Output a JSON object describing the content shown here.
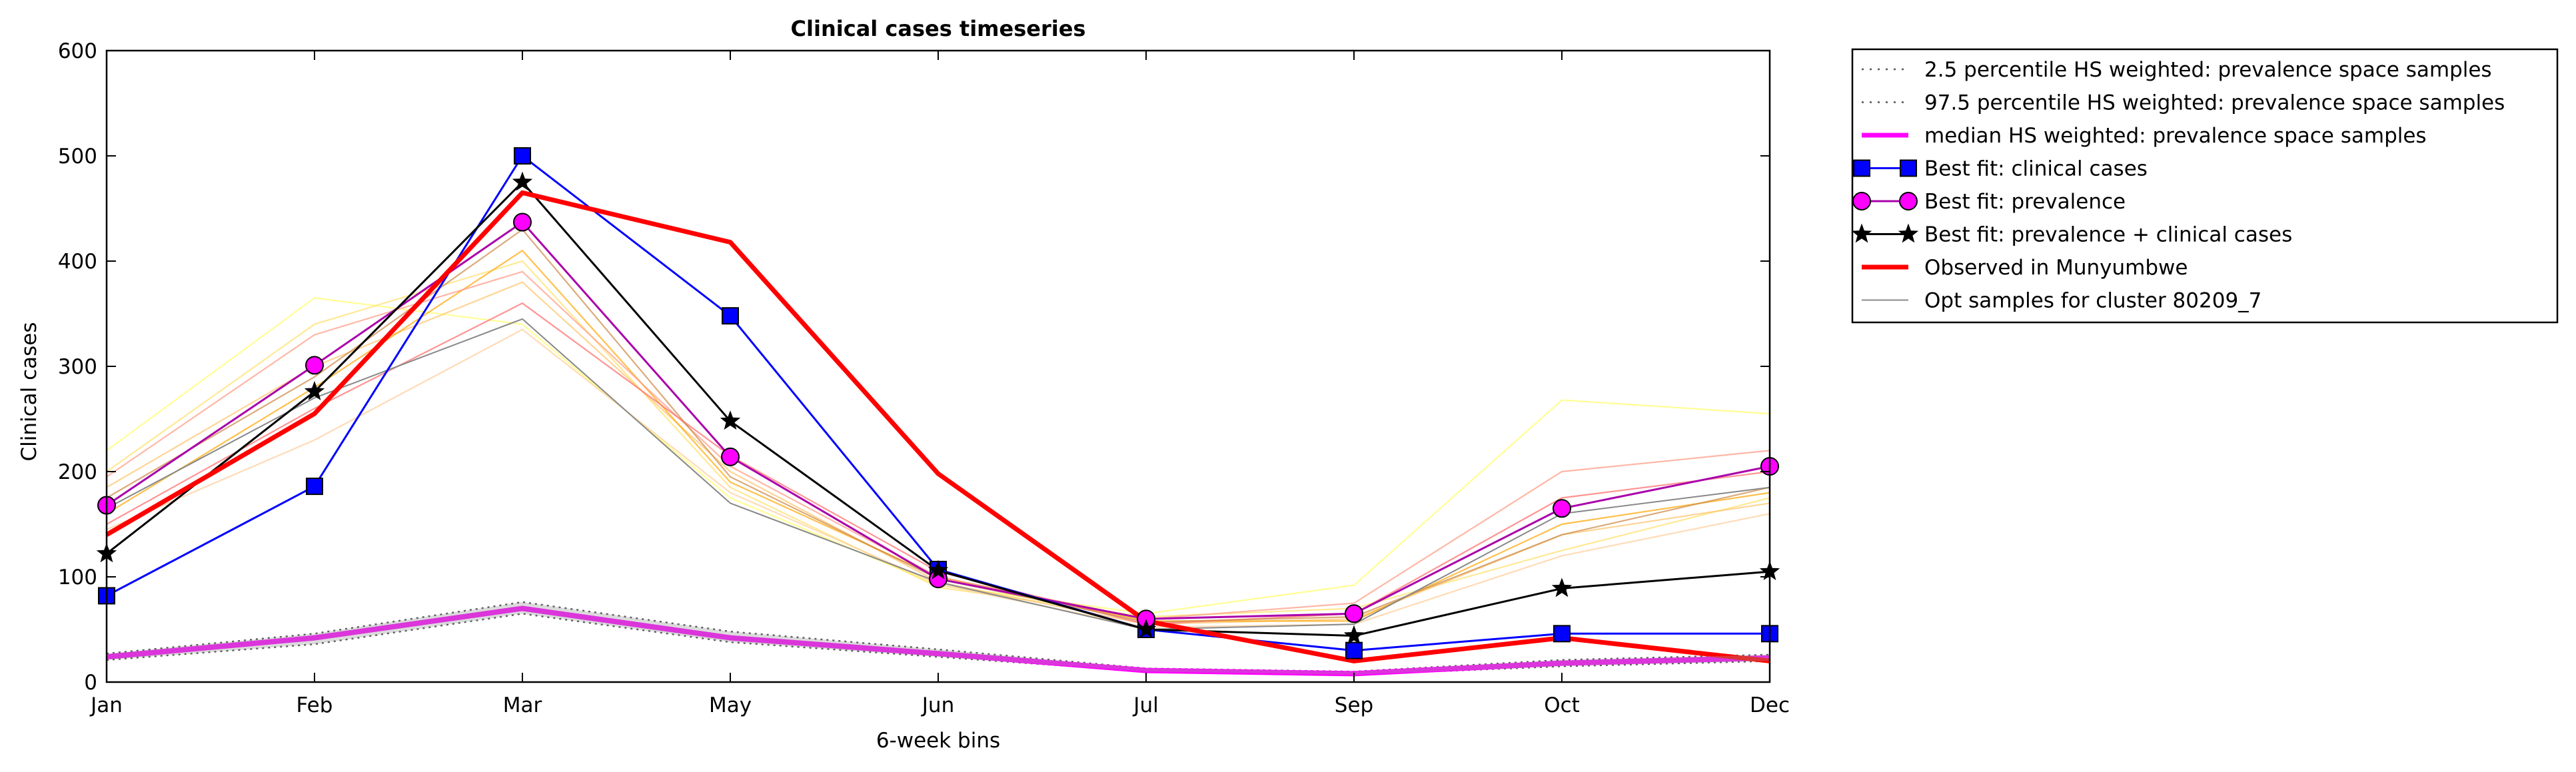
{
  "chart_data": {
    "type": "line",
    "title": "Clinical cases timeseries",
    "xlabel": "6-week bins",
    "ylabel": "Clinical cases",
    "categories": [
      "Jan",
      "Feb",
      "Mar",
      "May",
      "Jun",
      "Jul",
      "Sep",
      "Oct",
      "Dec"
    ],
    "ylim": [
      0,
      600
    ],
    "yticks": [
      0,
      100,
      200,
      300,
      400,
      500,
      600
    ],
    "grid": false,
    "legend_position": "outside-right",
    "series": [
      {
        "name": "2.5 percentile HS weighted: prevalence space samples",
        "style": "dotted",
        "color": "#555555",
        "values": [
          21,
          36,
          65,
          38,
          24,
          10,
          7,
          15,
          20
        ]
      },
      {
        "name": "97.5 percentile HS weighted: prevalence space samples",
        "style": "dotted",
        "color": "#555555",
        "values": [
          27,
          46,
          76,
          48,
          31,
          13,
          10,
          21,
          26
        ]
      },
      {
        "name": "median HS weighted: prevalence space samples",
        "style": "solid",
        "color": "#ff00ff",
        "values": [
          24,
          42,
          70,
          42,
          27,
          11,
          8,
          18,
          23
        ]
      },
      {
        "name": "Best fit: clinical cases",
        "style": "solid",
        "color": "#0000ff",
        "marker": "square",
        "values": [
          82,
          186,
          500,
          348,
          107,
          50,
          30,
          46,
          46
        ]
      },
      {
        "name": "Best fit: prevalence",
        "style": "solid",
        "color": "#aa00aa",
        "marker": "circle",
        "marker_color": "#ff00ff",
        "values": [
          168,
          301,
          437,
          214,
          98,
          60,
          65,
          165,
          205
        ]
      },
      {
        "name": "Best fit: prevalence + clinical cases",
        "style": "solid",
        "color": "#000000",
        "marker": "star",
        "values": [
          122,
          276,
          475,
          248,
          106,
          50,
          44,
          89,
          105
        ]
      },
      {
        "name": "Observed in Munyumbwe",
        "style": "solid",
        "color": "#ff0000",
        "values": [
          140,
          255,
          465,
          418,
          198,
          58,
          20,
          42,
          20
        ]
      },
      {
        "name": "Opt samples for cluster 80209_7",
        "style": "solid",
        "color": "#888888",
        "values": [
          165,
          270,
          345,
          170,
          95,
          50,
          55,
          160,
          185
        ]
      }
    ],
    "samples": [
      {
        "color": "#ffff66",
        "values": [
          220,
          365,
          340,
          175,
          92,
          65,
          92,
          268,
          255
        ]
      },
      {
        "color": "#ffe066",
        "values": [
          200,
          340,
          400,
          185,
          90,
          62,
          70,
          125,
          175
        ]
      },
      {
        "color": "#ffc266",
        "values": [
          185,
          300,
          380,
          200,
          95,
          55,
          60,
          140,
          170
        ]
      },
      {
        "color": "#ffa500",
        "values": [
          160,
          280,
          410,
          190,
          100,
          58,
          58,
          150,
          180
        ]
      },
      {
        "color": "#ff9980",
        "values": [
          195,
          330,
          390,
          205,
          100,
          60,
          75,
          200,
          220
        ]
      },
      {
        "color": "#ff6666",
        "values": [
          150,
          260,
          360,
          215,
          105,
          55,
          65,
          175,
          200
        ]
      },
      {
        "color": "#ffcc99",
        "values": [
          145,
          230,
          335,
          180,
          93,
          52,
          55,
          120,
          160
        ]
      },
      {
        "color": "#cc8844",
        "values": [
          175,
          290,
          430,
          195,
          98,
          57,
          62,
          140,
          185
        ]
      }
    ]
  }
}
